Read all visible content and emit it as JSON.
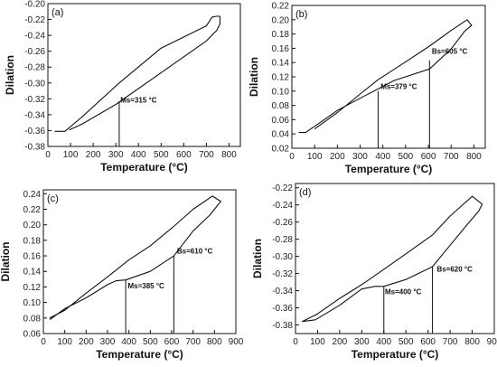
{
  "chart_data": [
    {
      "type": "line",
      "panel_label": "(a)",
      "xlabel": "Temperature (°C)",
      "ylabel": "Dilation",
      "xlim": [
        0,
        850
      ],
      "ylim": [
        -0.38,
        -0.2
      ],
      "xticks": [
        "0",
        "100",
        "200",
        "300",
        "400",
        "500",
        "600",
        "700",
        "800"
      ],
      "yticks": [
        "-0.38",
        "-0.36",
        "-0.34",
        "-0.32",
        "-0.30",
        "-0.28",
        "-0.26",
        "-0.24",
        "-0.22",
        "-0.20"
      ],
      "series": [
        {
          "x": [
            30,
            75,
            150,
            315,
            500,
            700,
            725,
            745,
            760,
            760,
            745,
            700,
            500,
            300,
            150,
            95
          ],
          "y": [
            -0.361,
            -0.361,
            -0.343,
            -0.3,
            -0.256,
            -0.228,
            -0.217,
            -0.216,
            -0.216,
            -0.226,
            -0.234,
            -0.247,
            -0.287,
            -0.327,
            -0.352,
            -0.359
          ]
        }
      ],
      "annotations": [
        {
          "text": "Ms=315 °C",
          "x": 315,
          "y_top": -0.323,
          "y_bottom": -0.38,
          "text_x": 320,
          "text_y": -0.325
        }
      ]
    },
    {
      "type": "line",
      "panel_label": "(b)",
      "xlabel": "Temperature (°C)",
      "ylabel": "Dilation",
      "xlim": [
        0,
        850
      ],
      "ylim": [
        0.02,
        0.22
      ],
      "xticks": [
        "0",
        "100",
        "200",
        "300",
        "400",
        "500",
        "600",
        "700",
        "800"
      ],
      "yticks": [
        "0.02",
        "0.04",
        "0.06",
        "0.08",
        "0.10",
        "0.12",
        "0.14",
        "0.16",
        "0.18",
        "0.20",
        "0.22"
      ],
      "series": [
        {
          "x": [
            30,
            60,
            120,
            200,
            300,
            379,
            450,
            605,
            700,
            760,
            790,
            770,
            700,
            605,
            500,
            379,
            300,
            200,
            100
          ],
          "y": [
            0.042,
            0.042,
            0.055,
            0.073,
            0.09,
            0.103,
            0.115,
            0.131,
            0.159,
            0.184,
            0.192,
            0.2,
            0.185,
            0.163,
            0.141,
            0.116,
            0.096,
            0.07,
            0.047
          ]
        }
      ],
      "annotations": [
        {
          "text": "Ms=379 °C",
          "x": 379,
          "y_top": 0.1,
          "y_bottom": 0.02,
          "text_x": 390,
          "text_y": 0.103
        },
        {
          "text": "Bs=605 °C",
          "x": 605,
          "y_top": 0.143,
          "y_bottom": 0.02,
          "text_x": 615,
          "text_y": 0.152
        }
      ]
    },
    {
      "type": "line",
      "panel_label": "(c)",
      "xlabel": "Temperature (°C)",
      "ylabel": "Dilation",
      "xlim": [
        0,
        900
      ],
      "ylim": [
        0.06,
        0.245
      ],
      "xticks": [
        "0",
        "100",
        "200",
        "300",
        "400",
        "500",
        "600",
        "700",
        "800",
        "900"
      ],
      "yticks": [
        "0.06",
        "0.08",
        "0.10",
        "0.12",
        "0.14",
        "0.16",
        "0.18",
        "0.20",
        "0.22",
        "0.24"
      ],
      "series": [
        {
          "x": [
            30,
            100,
            200,
            300,
            340,
            385,
            500,
            610,
            700,
            780,
            820,
            830,
            790,
            700,
            610,
            500,
            400,
            300,
            200,
            100,
            30
          ],
          "y": [
            0.078,
            0.092,
            0.106,
            0.123,
            0.128,
            0.129,
            0.14,
            0.16,
            0.192,
            0.213,
            0.227,
            0.23,
            0.237,
            0.22,
            0.198,
            0.173,
            0.155,
            0.133,
            0.112,
            0.09,
            0.08
          ]
        }
      ],
      "annotations": [
        {
          "text": "Ms=385 °C",
          "x": 385,
          "y_top": 0.129,
          "y_bottom": 0.06,
          "text_x": 395,
          "text_y": 0.118
        },
        {
          "text": "Bs=610 °C",
          "x": 610,
          "y_top": 0.16,
          "y_bottom": 0.06,
          "text_x": 625,
          "text_y": 0.163
        }
      ]
    },
    {
      "type": "line",
      "panel_label": "(d)",
      "xlabel": "Temperature (°C)",
      "ylabel": "Dilation",
      "xlim": [
        0,
        900
      ],
      "ylim": [
        -0.39,
        -0.215
      ],
      "xticks": [
        "0",
        "100",
        "200",
        "300",
        "400",
        "500",
        "600",
        "700",
        "800",
        "900"
      ],
      "yticks": [
        "-0.38",
        "-0.36",
        "-0.34",
        "-0.32",
        "-0.30",
        "-0.28",
        "-0.26",
        "-0.24",
        "-0.22"
      ],
      "series": [
        {
          "x": [
            30,
            90,
            200,
            300,
            360,
            400,
            500,
            620,
            700,
            780,
            830,
            845,
            800,
            700,
            620,
            500,
            400,
            300,
            200,
            100,
            30
          ],
          "y": [
            -0.376,
            -0.374,
            -0.357,
            -0.338,
            -0.335,
            -0.335,
            -0.327,
            -0.312,
            -0.287,
            -0.262,
            -0.247,
            -0.239,
            -0.23,
            -0.253,
            -0.275,
            -0.297,
            -0.315,
            -0.333,
            -0.349,
            -0.367,
            -0.376
          ]
        }
      ],
      "annotations": [
        {
          "text": "Ms=400 °C",
          "x": 400,
          "y_top": -0.335,
          "y_bottom": -0.39,
          "text_x": 405,
          "text_y": -0.344
        },
        {
          "text": "Bs=620 °C",
          "x": 620,
          "y_top": -0.312,
          "y_bottom": -0.39,
          "text_x": 640,
          "text_y": -0.318
        }
      ]
    }
  ]
}
